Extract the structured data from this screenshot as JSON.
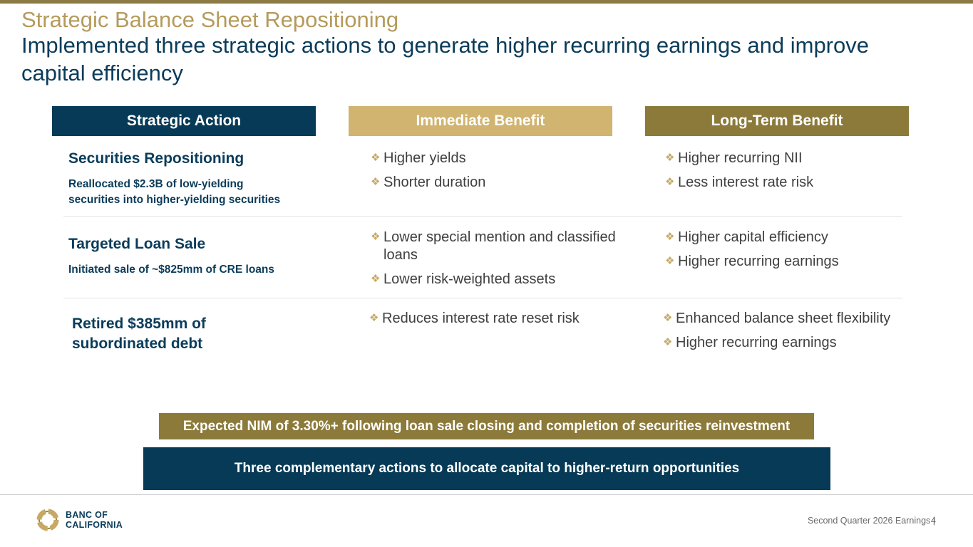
{
  "header": {
    "title": "Strategic Balance Sheet Repositioning",
    "subtitle": "Implemented three strategic actions to generate higher recurring earnings and improve capital efficiency"
  },
  "columns": {
    "action": "Strategic Action",
    "immediate": "Immediate Benefit",
    "long_term": "Long-Term Benefit"
  },
  "rows": [
    {
      "title": "Securities Repositioning",
      "desc_line1": "Reallocated $2.3B of low-yielding",
      "desc_line2": "securities into higher-yielding securities",
      "immediate": [
        "Higher yields",
        "Shorter duration"
      ],
      "long_term": [
        "Higher recurring NII",
        "Less interest rate risk"
      ]
    },
    {
      "title": "Targeted Loan Sale",
      "desc": "Initiated sale of ~$825mm of CRE loans",
      "immediate": [
        "Lower special mention and classified loans",
        "Lower risk-weighted assets"
      ],
      "long_term": [
        "Higher capital efficiency",
        "Higher recurring earnings"
      ]
    },
    {
      "title_line1": "Retired $385mm of",
      "title_line2": "subordinated debt",
      "immediate": [
        "Reduces interest rate reset risk"
      ],
      "long_term": [
        "Enhanced balance sheet flexibility",
        "Higher recurring earnings"
      ]
    }
  ],
  "banners": {
    "nim": "Expected NIM of 3.30%+ following loan sale closing and completion of securities reinvestment",
    "summary": "Three complementary actions to allocate capital to higher-return opportunities"
  },
  "footer": {
    "logo_line1": "BANC OF",
    "logo_line2": "CALIFORNIA",
    "text": "Second Quarter 2026 Earnings |",
    "page": "4"
  },
  "bullet_glyph": "❖",
  "colors": {
    "navy": "#063A56",
    "gold_light": "#D0B46F",
    "gold_dark": "#8C7A3A",
    "title_gold": "#B59A5B"
  }
}
